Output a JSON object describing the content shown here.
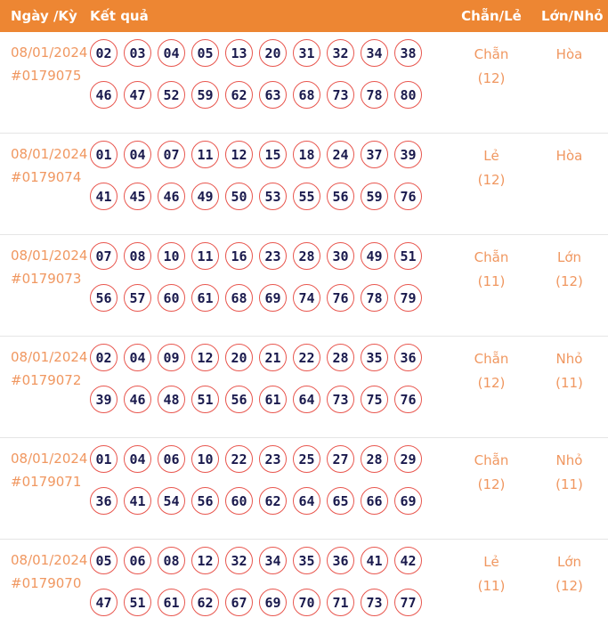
{
  "colors": {
    "header_bg": "#ED8633",
    "header_text": "#FFFFFF",
    "accent_text": "#F09760",
    "ball_border": "#E8564E",
    "ball_text": "#1A1A4D",
    "row_divider": "#E5E5E5"
  },
  "header": {
    "col_date": "Ngày /Kỳ",
    "col_result": "Kết quả",
    "col_chan_le": "Chẵn/Lẻ",
    "col_lon_nho": "Lớn/Nhỏ"
  },
  "rows": [
    {
      "date": "08/01/2024",
      "period": "#0179075",
      "numbers_line1": [
        "02",
        "03",
        "04",
        "05",
        "13",
        "20",
        "31",
        "32",
        "34",
        "38"
      ],
      "numbers_line2": [
        "46",
        "47",
        "52",
        "59",
        "62",
        "63",
        "68",
        "73",
        "78",
        "80"
      ],
      "chan_le_label": "Chẵn",
      "chan_le_count": "(12)",
      "lon_nho_label": "Hòa",
      "lon_nho_count": ""
    },
    {
      "date": "08/01/2024",
      "period": "#0179074",
      "numbers_line1": [
        "01",
        "04",
        "07",
        "11",
        "12",
        "15",
        "18",
        "24",
        "37",
        "39"
      ],
      "numbers_line2": [
        "41",
        "45",
        "46",
        "49",
        "50",
        "53",
        "55",
        "56",
        "59",
        "76"
      ],
      "chan_le_label": "Lẻ",
      "chan_le_count": "(12)",
      "lon_nho_label": "Hòa",
      "lon_nho_count": ""
    },
    {
      "date": "08/01/2024",
      "period": "#0179073",
      "numbers_line1": [
        "07",
        "08",
        "10",
        "11",
        "16",
        "23",
        "28",
        "30",
        "49",
        "51"
      ],
      "numbers_line2": [
        "56",
        "57",
        "60",
        "61",
        "68",
        "69",
        "74",
        "76",
        "78",
        "79"
      ],
      "chan_le_label": "Chẵn",
      "chan_le_count": "(11)",
      "lon_nho_label": "Lớn",
      "lon_nho_count": "(12)"
    },
    {
      "date": "08/01/2024",
      "period": "#0179072",
      "numbers_line1": [
        "02",
        "04",
        "09",
        "12",
        "20",
        "21",
        "22",
        "28",
        "35",
        "36"
      ],
      "numbers_line2": [
        "39",
        "46",
        "48",
        "51",
        "56",
        "61",
        "64",
        "73",
        "75",
        "76"
      ],
      "chan_le_label": "Chẵn",
      "chan_le_count": "(12)",
      "lon_nho_label": "Nhỏ",
      "lon_nho_count": "(11)"
    },
    {
      "date": "08/01/2024",
      "period": "#0179071",
      "numbers_line1": [
        "01",
        "04",
        "06",
        "10",
        "22",
        "23",
        "25",
        "27",
        "28",
        "29"
      ],
      "numbers_line2": [
        "36",
        "41",
        "54",
        "56",
        "60",
        "62",
        "64",
        "65",
        "66",
        "69"
      ],
      "chan_le_label": "Chẵn",
      "chan_le_count": "(12)",
      "lon_nho_label": "Nhỏ",
      "lon_nho_count": "(11)"
    },
    {
      "date": "08/01/2024",
      "period": "#0179070",
      "numbers_line1": [
        "05",
        "06",
        "08",
        "12",
        "32",
        "34",
        "35",
        "36",
        "41",
        "42"
      ],
      "numbers_line2": [
        "47",
        "51",
        "61",
        "62",
        "67",
        "69",
        "70",
        "71",
        "73",
        "77"
      ],
      "chan_le_label": "Lẻ",
      "chan_le_count": "(11)",
      "lon_nho_label": "Lớn",
      "lon_nho_count": "(12)"
    }
  ]
}
